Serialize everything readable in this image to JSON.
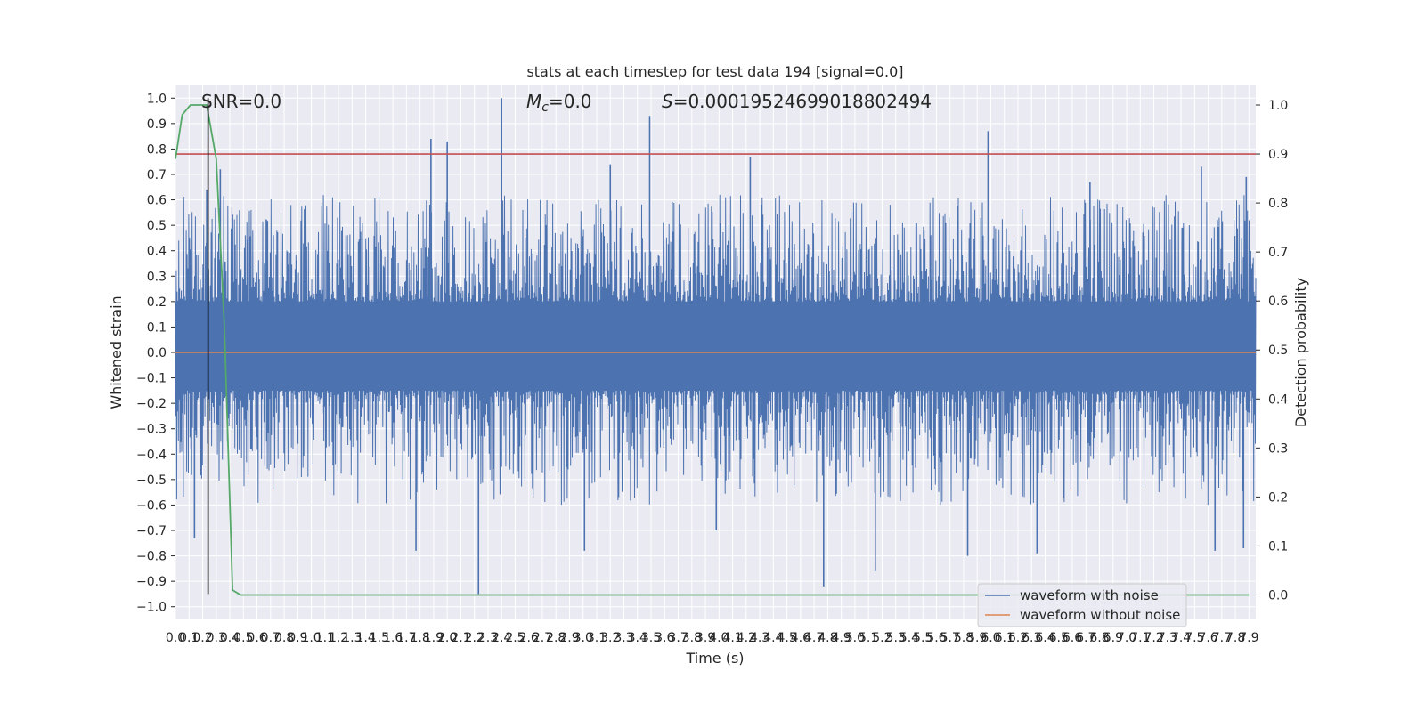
{
  "chart_data": {
    "type": "line",
    "title": "stats at each timestep for test data 194 [signal=0.0]",
    "xlabel": "Time (s)",
    "ylabel": "Whitened strain",
    "y2label": "Detection probability",
    "xlim": [
      0.0,
      7.95
    ],
    "ylim": [
      -1.05,
      1.05
    ],
    "y2lim": [
      -0.05,
      1.04
    ],
    "x_ticks": [
      "0.0",
      "0.1",
      "0.2",
      "0.3",
      "0.4",
      "0.5",
      "0.6",
      "0.7",
      "0.8",
      "0.9",
      "1.0",
      "1.1",
      "1.2",
      "1.3",
      "1.4",
      "1.5",
      "1.6",
      "1.7",
      "1.8",
      "1.9",
      "2.0",
      "2.1",
      "2.2",
      "2.3",
      "2.4",
      "2.5",
      "2.6",
      "2.7",
      "2.8",
      "2.9",
      "3.0",
      "3.1",
      "3.2",
      "3.3",
      "3.4",
      "3.5",
      "3.6",
      "3.7",
      "3.8",
      "3.9",
      "4.0",
      "4.1",
      "4.2",
      "4.3",
      "4.4",
      "4.5",
      "4.6",
      "4.7",
      "4.8",
      "4.9",
      "5.0",
      "5.1",
      "5.2",
      "5.3",
      "5.4",
      "5.5",
      "5.6",
      "5.7",
      "5.8",
      "5.9",
      "6.0",
      "6.1",
      "6.2",
      "6.3",
      "6.4",
      "6.5",
      "6.6",
      "6.7",
      "6.8",
      "6.9",
      "7.0",
      "7.1",
      "7.2",
      "7.3",
      "7.4",
      "7.5",
      "7.6",
      "7.7",
      "7.8",
      "7.9"
    ],
    "y_ticks": [
      "1.0",
      "0.9",
      "0.8",
      "0.7",
      "0.6",
      "0.5",
      "0.4",
      "0.3",
      "0.2",
      "0.1",
      "0.0",
      "−0.1",
      "−0.2",
      "−0.3",
      "−0.4",
      "−0.5",
      "−0.6",
      "−0.7",
      "−0.8",
      "−0.9",
      "−1.0"
    ],
    "y2_ticks": [
      "1.0",
      "0.9",
      "0.8",
      "0.7",
      "0.6",
      "0.5",
      "0.4",
      "0.3",
      "0.2",
      "0.1",
      "0.0"
    ],
    "annotations": {
      "snr": "SNR=0.0",
      "mc_symbol": "M",
      "mc_subscript": "c",
      "mc_value": "=0.0",
      "s_symbol": "S",
      "s_value": "=0.00019524699018802494"
    },
    "grid": true,
    "legend_position": "lower-right",
    "series": [
      {
        "name": "waveform with noise",
        "color": "#4c72b0",
        "noise_band_upper": [
          0.2,
          0.22
        ],
        "noise_band_lower": [
          -0.15,
          -0.17
        ],
        "peaks": [
          {
            "x": 0.23,
            "y": 0.64
          },
          {
            "x": 0.33,
            "y": 0.72
          },
          {
            "x": 1.88,
            "y": 0.84
          },
          {
            "x": 2.0,
            "y": 0.83
          },
          {
            "x": 2.4,
            "y": 1.0
          },
          {
            "x": 3.49,
            "y": 0.93
          },
          {
            "x": 4.23,
            "y": 0.77
          },
          {
            "x": 5.98,
            "y": 0.87
          },
          {
            "x": 7.55,
            "y": 0.73
          },
          {
            "x": 7.88,
            "y": 0.69
          },
          {
            "x": 3.2,
            "y": 0.74
          },
          {
            "x": 6.73,
            "y": 0.67
          }
        ],
        "troughs": [
          {
            "x": 2.23,
            "y": -0.95
          },
          {
            "x": 4.77,
            "y": -0.92
          },
          {
            "x": 5.15,
            "y": -0.86
          },
          {
            "x": 3.01,
            "y": -0.78
          },
          {
            "x": 1.77,
            "y": -0.78
          },
          {
            "x": 5.83,
            "y": -0.8
          },
          {
            "x": 0.14,
            "y": -0.73
          },
          {
            "x": 3.98,
            "y": -0.7
          },
          {
            "x": 7.65,
            "y": -0.78
          },
          {
            "x": 7.86,
            "y": -0.77
          },
          {
            "x": 6.34,
            "y": -0.79
          }
        ]
      },
      {
        "name": "waveform without noise",
        "color": "#dd8452",
        "x": [
          0.0,
          7.95
        ],
        "y": [
          0.0,
          0.0
        ]
      },
      {
        "color": "#55a868",
        "axis": "right",
        "x": [
          0.0,
          0.05,
          0.11,
          0.17,
          0.23,
          0.3,
          0.36,
          0.42,
          0.48,
          7.9
        ],
        "y": [
          0.89,
          0.98,
          1.0,
          1.0,
          1.0,
          0.89,
          0.55,
          0.01,
          0.0,
          0.0
        ]
      }
    ],
    "threshold_line": {
      "axis": "right",
      "value": 0.9,
      "color": "#c44e52"
    },
    "marker_line": {
      "x": 0.24,
      "color": "#000000",
      "y_top": 1.0,
      "y_bottom": -0.95
    }
  },
  "legend": {
    "noise_label": "waveform with noise",
    "clean_label": "waveform without noise"
  }
}
